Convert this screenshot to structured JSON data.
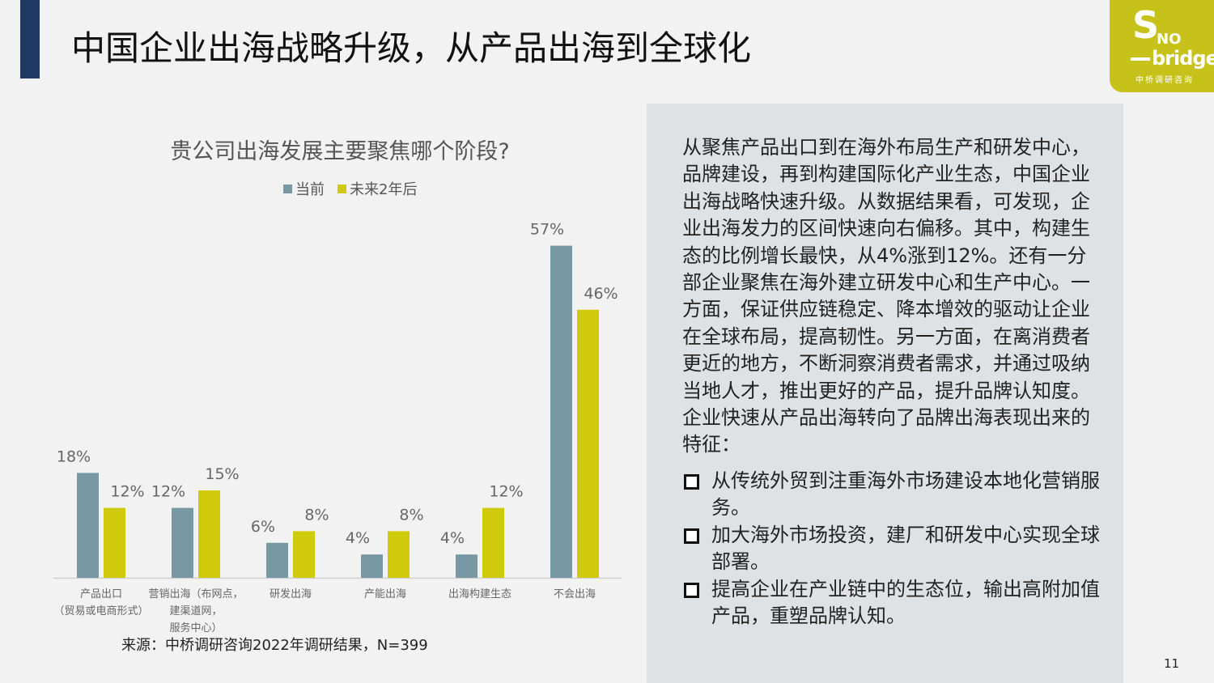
{
  "slide": {
    "title": "中国企业出海战略升级，从产品出海到全球化",
    "page_number": "11"
  },
  "logo": {
    "s": "S",
    "no": "NO",
    "bridges": "bridges",
    "cn": "中桥调研咨询"
  },
  "colors": {
    "current": "#7898a3",
    "future": "#cfcb0c",
    "accent_navy": "#1f3864",
    "logo_bg": "#c7c21a"
  },
  "chart_data": {
    "type": "bar",
    "title": "贵公司出海发展主要聚焦哪个阶段?",
    "categories": [
      [
        "产品出口",
        "（贸易或电商形式）"
      ],
      [
        "营销出海（布网点，",
        "建渠道网，",
        "服务中心）"
      ],
      [
        "研发出海"
      ],
      [
        "产能出海"
      ],
      [
        "出海构建生态"
      ],
      [
        "不会出海"
      ]
    ],
    "series": [
      {
        "name": "当前",
        "values": [
          18,
          12,
          6,
          4,
          4,
          57
        ]
      },
      {
        "name": "未来2年后",
        "values": [
          12,
          15,
          8,
          8,
          12,
          46
        ]
      }
    ],
    "unit": "%",
    "legend_position": "top",
    "grid": false
  },
  "source": "来源：中桥调研咨询2022年调研结果，N=399",
  "panel": {
    "paragraph": "从聚焦产品出口到在海外布局生产和研发中心，品牌建设，再到构建国际化产业生态，中国企业出海战略快速升级。从数据结果看，可发现，企业出海发力的区间快速向右偏移。其中，构建生态的比例增长最快，从4%涨到12%。还有一分部企业聚焦在海外建立研发中心和生产中心。一方面，保证供应链稳定、降本增效的驱动让企业在全球布局，提高韧性。另一方面，在离消费者更近的地方，不断洞察消费者需求，并通过吸纳当地人才，推出更好的产品，提升品牌认知度。企业快速从产品出海转向了品牌出海表现出来的特征：",
    "bullets": [
      "从传统外贸到注重海外市场建设本地化营销服务。",
      "加大海外市场投资，建厂和研发中心实现全球部署。",
      "提高企业在产业链中的生态位，输出高附加值产品，重塑品牌认知。"
    ]
  }
}
